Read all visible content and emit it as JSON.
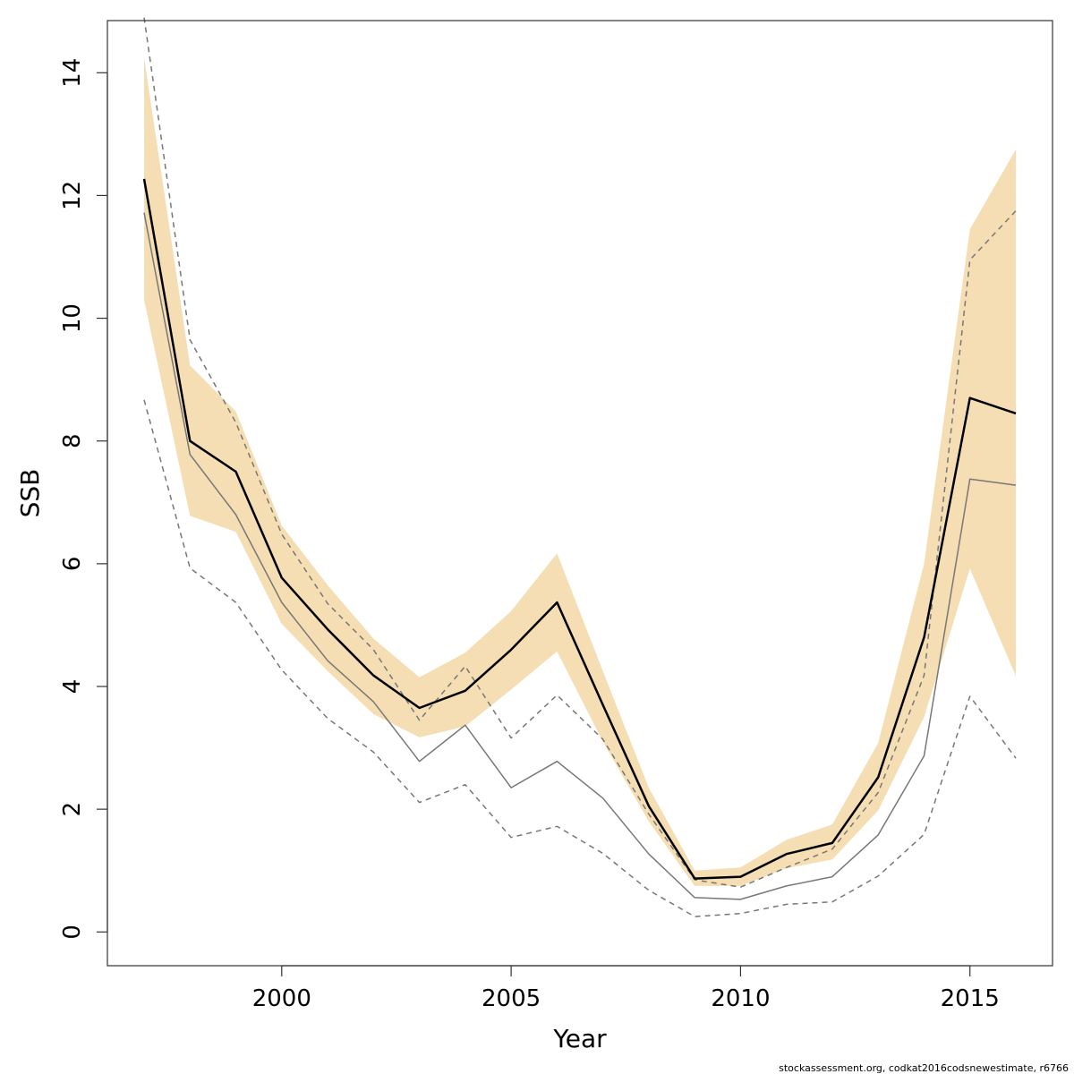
{
  "chart_data": {
    "type": "line",
    "xlabel": "Year",
    "ylabel": "SSB",
    "caption": "stockassessment.org, codkat2016codsnewestimate, r6766",
    "xlim": [
      1996.2,
      2016.8
    ],
    "ylim": [
      -0.55,
      14.85
    ],
    "xticks": [
      2000,
      2005,
      2010,
      2015
    ],
    "yticks": [
      0,
      2,
      4,
      6,
      8,
      10,
      12,
      14
    ],
    "grid": false,
    "legend": "none",
    "x": [
      1997,
      1998,
      1999,
      2000,
      2001,
      2002,
      2003,
      2004,
      2005,
      2006,
      2007,
      2008,
      2009,
      2010,
      2011,
      2012,
      2013,
      2014,
      2015,
      2016
    ],
    "band": {
      "color": "#f5deb3",
      "lower": [
        10.3,
        6.78,
        6.52,
        5.02,
        4.25,
        3.55,
        3.17,
        3.35,
        3.95,
        4.57,
        3.1,
        1.8,
        0.75,
        0.75,
        1.04,
        1.18,
        1.98,
        3.5,
        5.92,
        4.17
      ],
      "upper": [
        14.25,
        9.23,
        8.48,
        6.62,
        5.65,
        4.78,
        4.15,
        4.55,
        5.23,
        6.17,
        4.25,
        2.35,
        1.0,
        1.05,
        1.5,
        1.75,
        3.08,
        6.0,
        11.45,
        12.75
      ]
    },
    "series": [
      {
        "values": [
          12.27,
          8.0,
          7.5,
          5.77,
          4.93,
          4.18,
          3.65,
          3.93,
          4.6,
          5.37,
          3.7,
          2.05,
          0.87,
          0.9,
          1.27,
          1.45,
          2.52,
          4.8,
          8.7,
          8.45
        ],
        "color": "#000000",
        "dash": false,
        "width": 2.5
      },
      {
        "values": [
          11.72,
          7.78,
          6.8,
          5.37,
          4.42,
          3.75,
          2.78,
          3.37,
          2.35,
          2.78,
          2.18,
          1.27,
          0.56,
          0.53,
          0.75,
          0.9,
          1.58,
          2.87,
          7.38,
          7.28
        ],
        "color": "#777777",
        "dash": false,
        "width": 1.5
      },
      {
        "values": [
          14.9,
          9.65,
          8.3,
          6.48,
          5.35,
          4.6,
          3.45,
          4.33,
          3.16,
          3.86,
          3.14,
          1.92,
          0.85,
          0.73,
          1.05,
          1.35,
          2.27,
          4.18,
          10.95,
          11.75
        ],
        "color": "#777777",
        "dash": true,
        "width": 1.5
      },
      {
        "values": [
          8.67,
          5.93,
          5.37,
          4.27,
          3.48,
          2.93,
          2.11,
          2.4,
          1.54,
          1.72,
          1.28,
          0.68,
          0.25,
          0.3,
          0.45,
          0.49,
          0.91,
          1.59,
          3.84,
          2.83
        ],
        "color": "#777777",
        "dash": true,
        "width": 1.5
      }
    ]
  }
}
